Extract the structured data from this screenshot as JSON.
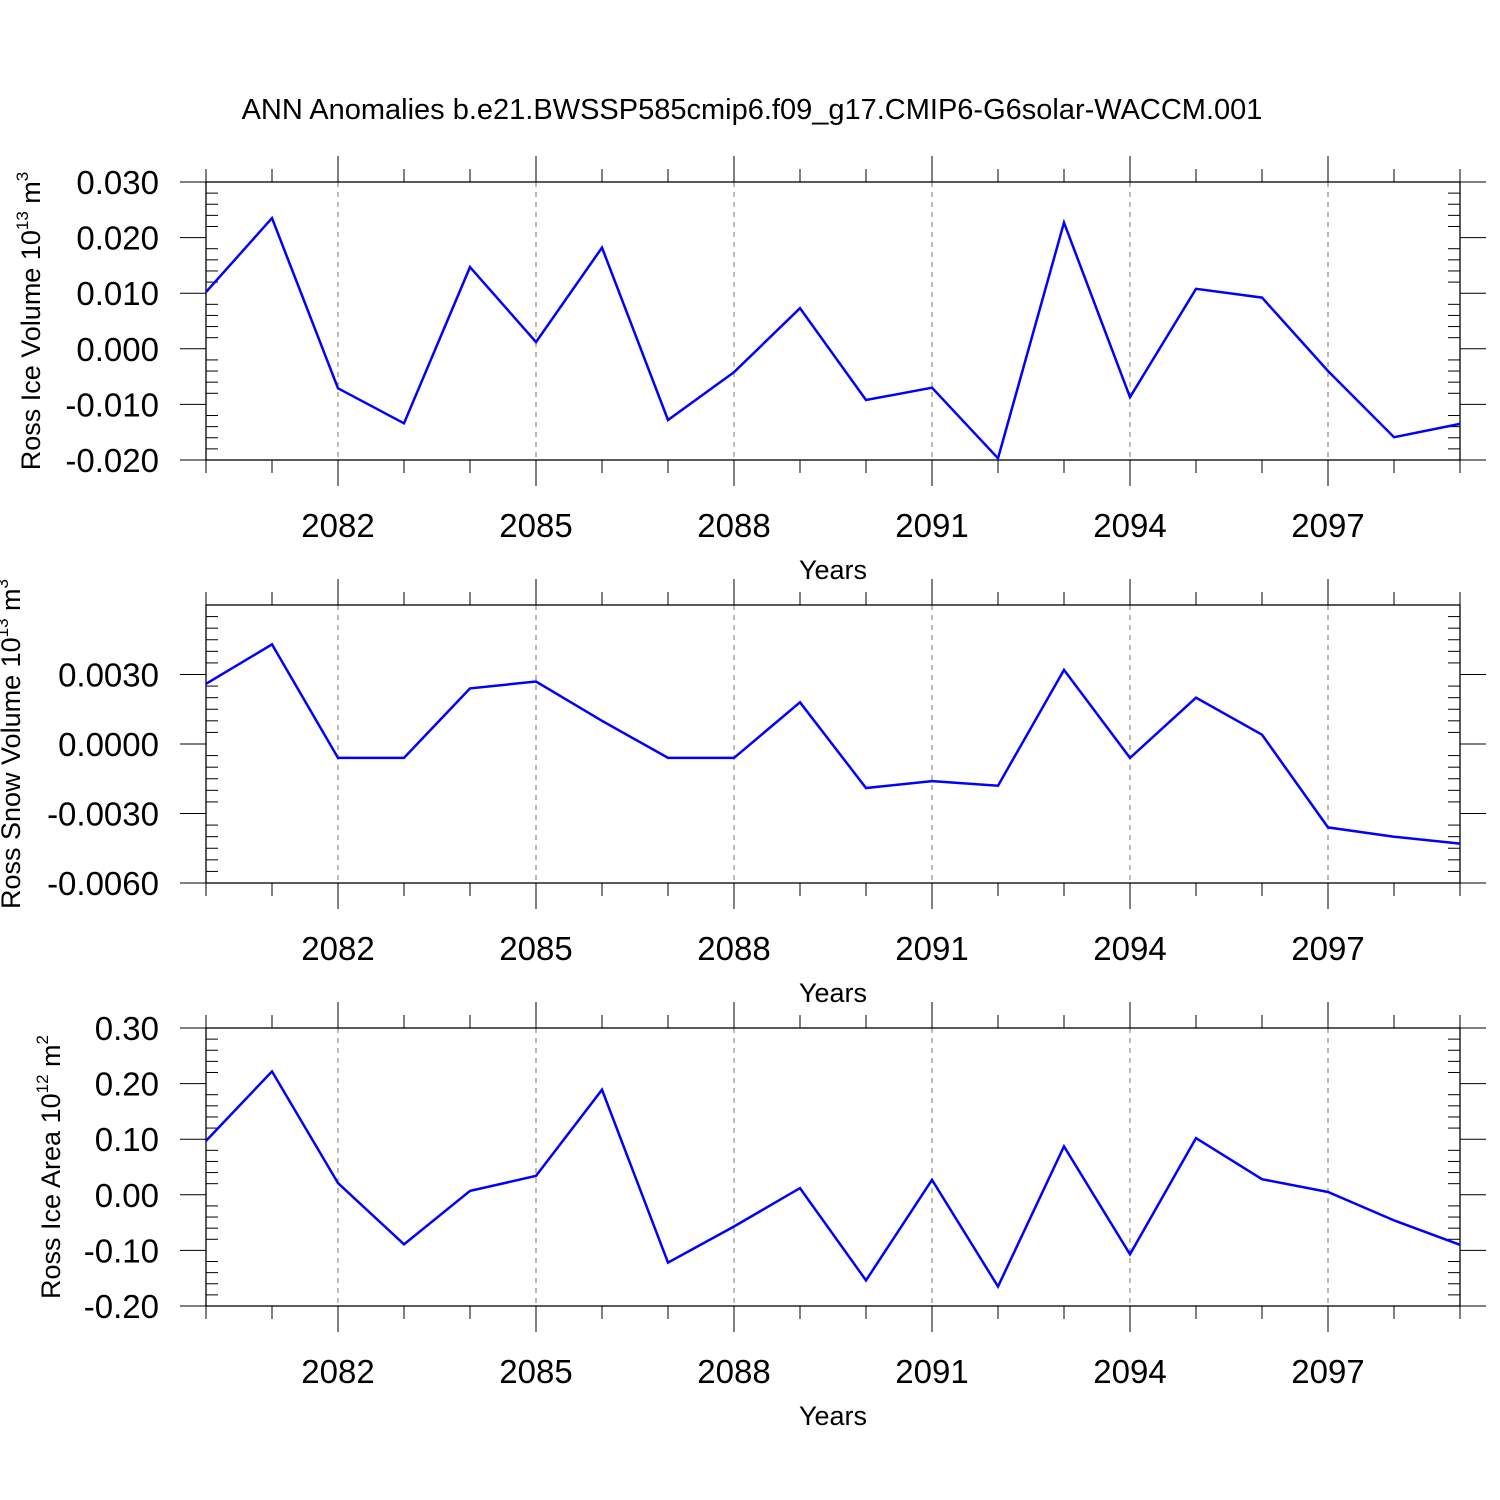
{
  "title": "ANN Anomalies b.e21.BWSSP585cmip6.f09_g17.CMIP6-G6solar-WACCM.001",
  "line_color": "#0000ff",
  "chart_data": [
    {
      "type": "line",
      "title": "ANN Anomalies b.e21.BWSSP585cmip6.f09_g17.CMIP6-G6solar-WACCM.001",
      "xlabel": "Years",
      "ylabel": {
        "text": "Ross Ice Volume 10",
        "exp": "13",
        "unit": " m",
        "unit_exp": "3"
      },
      "xlim": [
        2080,
        2099
      ],
      "ylim": [
        -0.02,
        0.03
      ],
      "x_ticks": [
        2082,
        2085,
        2088,
        2091,
        2094,
        2097
      ],
      "x_tick_labels": [
        "2082",
        "2085",
        "2088",
        "2091",
        "2094",
        "2097"
      ],
      "y_ticks": [
        -0.02,
        -0.01,
        0.0,
        0.01,
        0.02,
        0.03
      ],
      "y_tick_labels": [
        "-0.020",
        "-0.010",
        "0.000",
        "0.010",
        "0.020",
        "0.030"
      ],
      "y_minor_step": 0.002,
      "grid": "x-major dashed",
      "x": [
        2080,
        2081,
        2082,
        2083,
        2084,
        2085,
        2086,
        2087,
        2088,
        2089,
        2090,
        2091,
        2092,
        2093,
        2094,
        2095,
        2096,
        2097,
        2098,
        2099
      ],
      "values": [
        0.0102,
        0.0235,
        -0.0071,
        -0.0134,
        0.0147,
        0.0012,
        0.0182,
        -0.0128,
        -0.0042,
        0.0073,
        -0.0092,
        -0.007,
        -0.0197,
        0.0227,
        -0.0087,
        0.0108,
        0.0092,
        -0.004,
        -0.0159,
        -0.0135
      ]
    },
    {
      "type": "line",
      "xlabel": "Years",
      "ylabel": {
        "text": "Ross Snow Volume 10",
        "exp": "13",
        "unit": " m",
        "unit_exp": "3"
      },
      "xlim": [
        2080,
        2099
      ],
      "ylim": [
        -0.006,
        0.006
      ],
      "x_ticks": [
        2082,
        2085,
        2088,
        2091,
        2094,
        2097
      ],
      "x_tick_labels": [
        "2082",
        "2085",
        "2088",
        "2091",
        "2094",
        "2097"
      ],
      "y_ticks": [
        -0.006,
        -0.003,
        0.0,
        0.003
      ],
      "y_tick_labels": [
        "-0.0060",
        "-0.0030",
        "0.0000",
        "0.0030"
      ],
      "y_minor_step": 0.0005,
      "grid": "x-major dashed",
      "x": [
        2080,
        2081,
        2082,
        2083,
        2084,
        2085,
        2086,
        2087,
        2088,
        2089,
        2090,
        2091,
        2092,
        2093,
        2094,
        2095,
        2096,
        2097,
        2098,
        2099
      ],
      "values": [
        0.0026,
        0.0043,
        -0.0006,
        -0.0006,
        0.0024,
        0.0027,
        0.001,
        -0.0006,
        -0.0006,
        0.0018,
        -0.0019,
        -0.0016,
        -0.0018,
        0.0032,
        -0.0006,
        0.002,
        0.0004,
        -0.0036,
        -0.004,
        -0.0043
      ]
    },
    {
      "type": "line",
      "xlabel": "Years",
      "ylabel": {
        "text": "Ross Ice Area 10",
        "exp": "12",
        "unit": " m",
        "unit_exp": "2"
      },
      "xlim": [
        2080,
        2099
      ],
      "ylim": [
        -0.2,
        0.3
      ],
      "x_ticks": [
        2082,
        2085,
        2088,
        2091,
        2094,
        2097
      ],
      "x_tick_labels": [
        "2082",
        "2085",
        "2088",
        "2091",
        "2094",
        "2097"
      ],
      "y_ticks": [
        -0.2,
        -0.1,
        0.0,
        0.1,
        0.2,
        0.3
      ],
      "y_tick_labels": [
        "-0.20",
        "-0.10",
        "0.00",
        "0.10",
        "0.20",
        "0.30"
      ],
      "y_minor_step": 0.02,
      "grid": "x-major dashed",
      "x": [
        2080,
        2081,
        2082,
        2083,
        2084,
        2085,
        2086,
        2087,
        2088,
        2089,
        2090,
        2091,
        2092,
        2093,
        2094,
        2095,
        2096,
        2097,
        2098,
        2099
      ],
      "values": [
        0.097,
        0.222,
        0.021,
        -0.089,
        0.007,
        0.034,
        0.189,
        -0.122,
        -0.057,
        0.012,
        -0.154,
        0.027,
        -0.165,
        0.087,
        -0.107,
        0.102,
        0.028,
        0.005,
        -0.046,
        -0.09
      ]
    }
  ]
}
